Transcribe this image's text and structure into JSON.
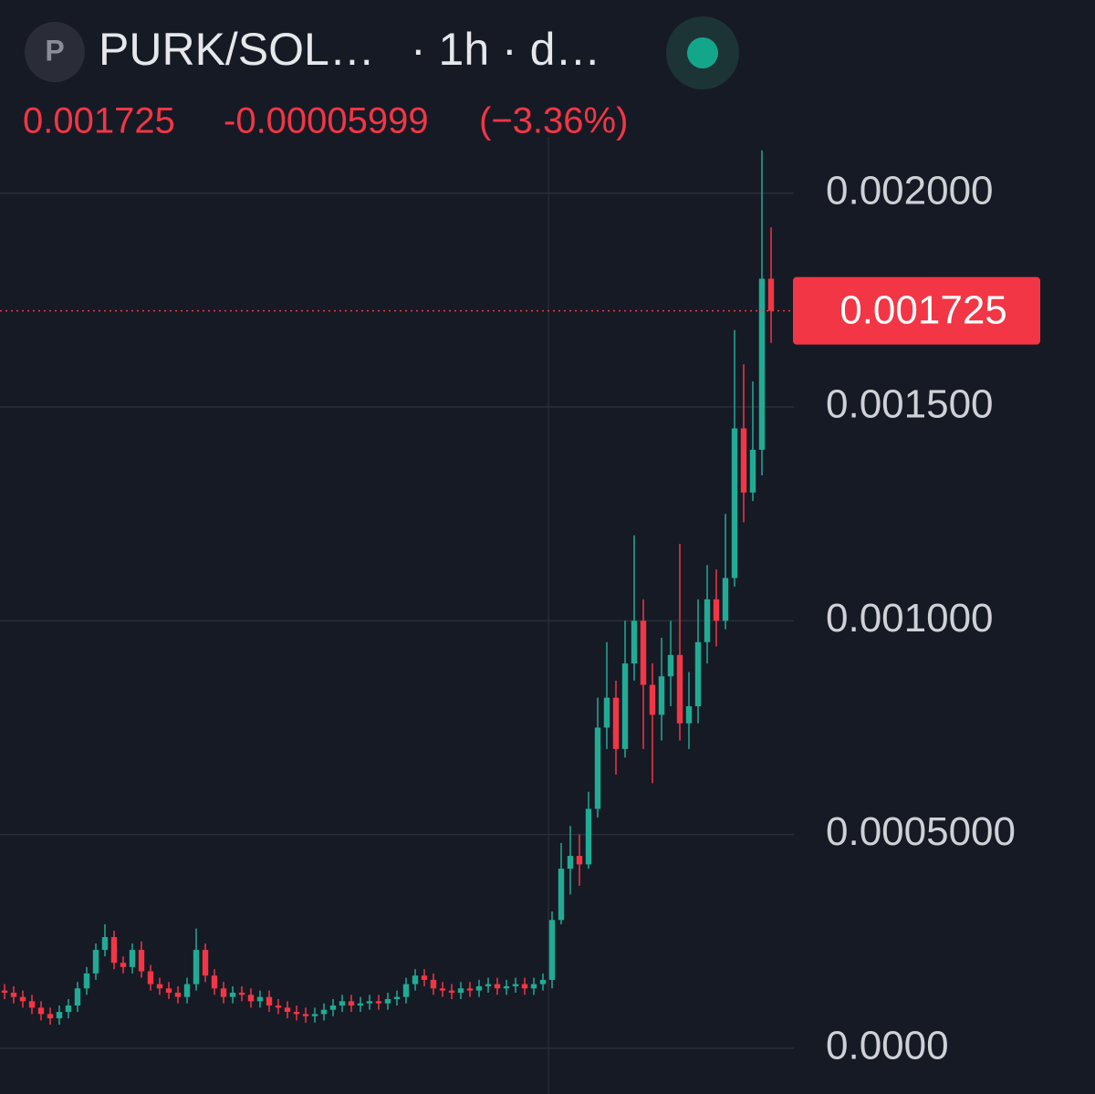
{
  "chart_data": {
    "type": "candlestick",
    "icon_label": "P",
    "title": "PURK/SOL…",
    "subtitle": "· 1h · d…",
    "last_price": 0.001725,
    "last_price_label": "0.001725",
    "change": "-0.00005999",
    "change_percent": "(−3.36%)",
    "up_color": "#22ab94",
    "down_color": "#f23645",
    "ylim": [
      -0.000107,
      0.002452
    ],
    "yticks": [
      {
        "value": 0,
        "label": "0.0000"
      },
      {
        "value": 0.0005,
        "label": "0.0005000"
      },
      {
        "value": 0.001,
        "label": "0.001000"
      },
      {
        "value": 0.0015,
        "label": "0.001500"
      },
      {
        "value": 0.002,
        "label": "0.002000"
      }
    ],
    "grid": true,
    "series": [
      {
        "open": [
          0.000135,
          0.00013,
          0.00012,
          0.00011,
          9.5e-05,
          8e-05,
          7e-05,
          8.5e-05,
          0.0001,
          0.00014,
          0.000175,
          0.00023,
          0.00026,
          0.0002,
          0.00019,
          0.00023,
          0.00018,
          0.00015,
          0.00014,
          0.00013,
          0.00012,
          0.00015,
          0.00023,
          0.00017,
          0.00014,
          0.00012,
          0.00013,
          0.000125,
          0.00011,
          0.00012,
          0.0001,
          9.5e-05,
          8.5e-05,
          8e-05,
          7.5e-05,
          8e-05,
          9e-05,
          0.0001,
          0.00011,
          0.0001,
          0.000105,
          0.00011,
          0.000105,
          0.000115,
          0.00012,
          0.00015,
          0.00017,
          0.00016,
          0.00014,
          0.000135,
          0.00013,
          0.00014,
          0.000135,
          0.000145,
          0.00015,
          0.00014,
          0.000145,
          0.00015,
          0.00014,
          0.00015,
          0.00016,
          0.0003,
          0.00042,
          0.00045,
          0.00043,
          0.00056,
          0.00075,
          0.00082,
          0.0007,
          0.0009,
          0.001,
          0.00085,
          0.00078,
          0.00087,
          0.00092,
          0.00076,
          0.0008,
          0.00095,
          0.00105,
          0.001,
          0.0011,
          0.00145,
          0.0013,
          0.0014,
          0.0018
        ],
        "high": [
          0.00015,
          0.000145,
          0.000135,
          0.000125,
          0.00011,
          9.5e-05,
          0.0001,
          0.000115,
          0.000155,
          0.00019,
          0.000245,
          0.00029,
          0.000275,
          0.000215,
          0.000245,
          0.00025,
          0.000195,
          0.000165,
          0.000155,
          0.000145,
          0.000165,
          0.00028,
          0.000245,
          0.000185,
          0.000155,
          0.000145,
          0.000145,
          0.00014,
          0.000135,
          0.000135,
          0.000115,
          0.00011,
          0.0001,
          9.5e-05,
          9.5e-05,
          0.000105,
          0.000115,
          0.000125,
          0.000125,
          0.00012,
          0.000125,
          0.000125,
          0.00013,
          0.000135,
          0.000165,
          0.000185,
          0.000185,
          0.000175,
          0.000155,
          0.00015,
          0.000155,
          0.000155,
          0.00016,
          0.000165,
          0.000165,
          0.00016,
          0.000165,
          0.000165,
          0.000165,
          0.000175,
          0.00032,
          0.00048,
          0.00052,
          0.0005,
          0.0006,
          0.00082,
          0.00095,
          0.00086,
          0.001,
          0.0012,
          0.00105,
          0.0009,
          0.00096,
          0.001,
          0.00118,
          0.00088,
          0.00105,
          0.00113,
          0.00112,
          0.00125,
          0.00168,
          0.0016,
          0.00156,
          0.0021,
          0.00192
        ],
        "low": [
          0.000115,
          0.000105,
          9.5e-05,
          8e-05,
          6.5e-05,
          5.5e-05,
          5.5e-05,
          7e-05,
          8.5e-05,
          0.000125,
          0.00016,
          0.000215,
          0.000185,
          0.000175,
          0.000175,
          0.000165,
          0.000135,
          0.000125,
          0.000115,
          0.000105,
          0.000105,
          0.000135,
          0.000155,
          0.000125,
          0.000105,
          0.000105,
          0.00011,
          9.5e-05,
          9.5e-05,
          8.5e-05,
          8e-05,
          7e-05,
          6.5e-05,
          6e-05,
          6e-05,
          6.5e-05,
          7.5e-05,
          8.5e-05,
          8.5e-05,
          8.5e-05,
          9e-05,
          9e-05,
          9e-05,
          0.0001,
          0.000105,
          0.000135,
          0.000145,
          0.000125,
          0.00012,
          0.000115,
          0.000115,
          0.00012,
          0.00012,
          0.00013,
          0.000125,
          0.000125,
          0.00013,
          0.000125,
          0.000125,
          0.000135,
          0.00014,
          0.00029,
          0.00036,
          0.00038,
          0.00042,
          0.00054,
          0.0007,
          0.00064,
          0.00068,
          0.00086,
          0.0007,
          0.00062,
          0.00072,
          0.0008,
          0.00072,
          0.0007,
          0.00076,
          0.0009,
          0.00094,
          0.00098,
          0.00108,
          0.00123,
          0.00128,
          0.00134,
          0.00165
        ],
        "close": [
          0.00013,
          0.00012,
          0.00011,
          9.5e-05,
          8e-05,
          7e-05,
          8.5e-05,
          0.0001,
          0.00014,
          0.000175,
          0.00023,
          0.00026,
          0.0002,
          0.00019,
          0.00023,
          0.00018,
          0.00015,
          0.00014,
          0.00013,
          0.00012,
          0.00015,
          0.00023,
          0.00017,
          0.00014,
          0.00012,
          0.00013,
          0.000125,
          0.00011,
          0.00012,
          0.0001,
          9.5e-05,
          8.5e-05,
          8e-05,
          7.5e-05,
          8e-05,
          9e-05,
          0.0001,
          0.00011,
          0.0001,
          0.000105,
          0.00011,
          0.000105,
          0.000115,
          0.00012,
          0.00015,
          0.00017,
          0.00016,
          0.00014,
          0.000135,
          0.00013,
          0.00014,
          0.000135,
          0.000145,
          0.00015,
          0.00014,
          0.000145,
          0.00015,
          0.00014,
          0.00015,
          0.00016,
          0.0003,
          0.00042,
          0.00045,
          0.00043,
          0.00056,
          0.00075,
          0.00082,
          0.0007,
          0.0009,
          0.001,
          0.00085,
          0.00078,
          0.00087,
          0.00092,
          0.00076,
          0.0008,
          0.00095,
          0.00105,
          0.001,
          0.0011,
          0.00145,
          0.0013,
          0.0014,
          0.0018,
          0.001725
        ]
      }
    ]
  }
}
